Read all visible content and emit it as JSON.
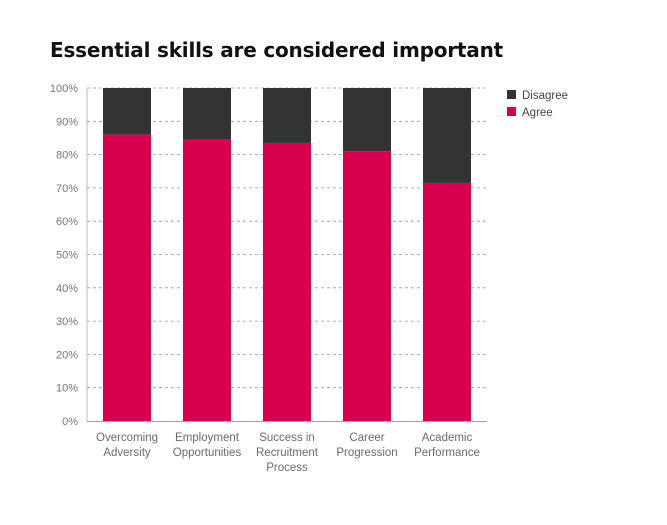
{
  "chart_data": {
    "type": "bar",
    "stacked": true,
    "title": "Essential skills are considered important",
    "categories": [
      [
        "Overcoming",
        "Adversity"
      ],
      [
        "Employment",
        "Opportunities"
      ],
      [
        "Success in",
        "Recruitment",
        "Process"
      ],
      [
        "Career",
        "Progression"
      ],
      [
        "Academic",
        "Performance"
      ]
    ],
    "series": [
      {
        "name": "Agree",
        "color": "#d6004f",
        "values": [
          86,
          84.5,
          83.5,
          81,
          71.5
        ]
      },
      {
        "name": "Disagree",
        "color": "#333333",
        "values": [
          14,
          15.5,
          16.5,
          19,
          28.5
        ]
      }
    ],
    "legend_order": [
      "Disagree",
      "Agree"
    ],
    "legend_position": "top-right",
    "ylim": [
      0,
      100
    ],
    "yticks": [
      "0%",
      "10%",
      "20%",
      "30%",
      "40%",
      "50%",
      "60%",
      "70%",
      "80%",
      "90%",
      "100%"
    ],
    "grid": true
  }
}
